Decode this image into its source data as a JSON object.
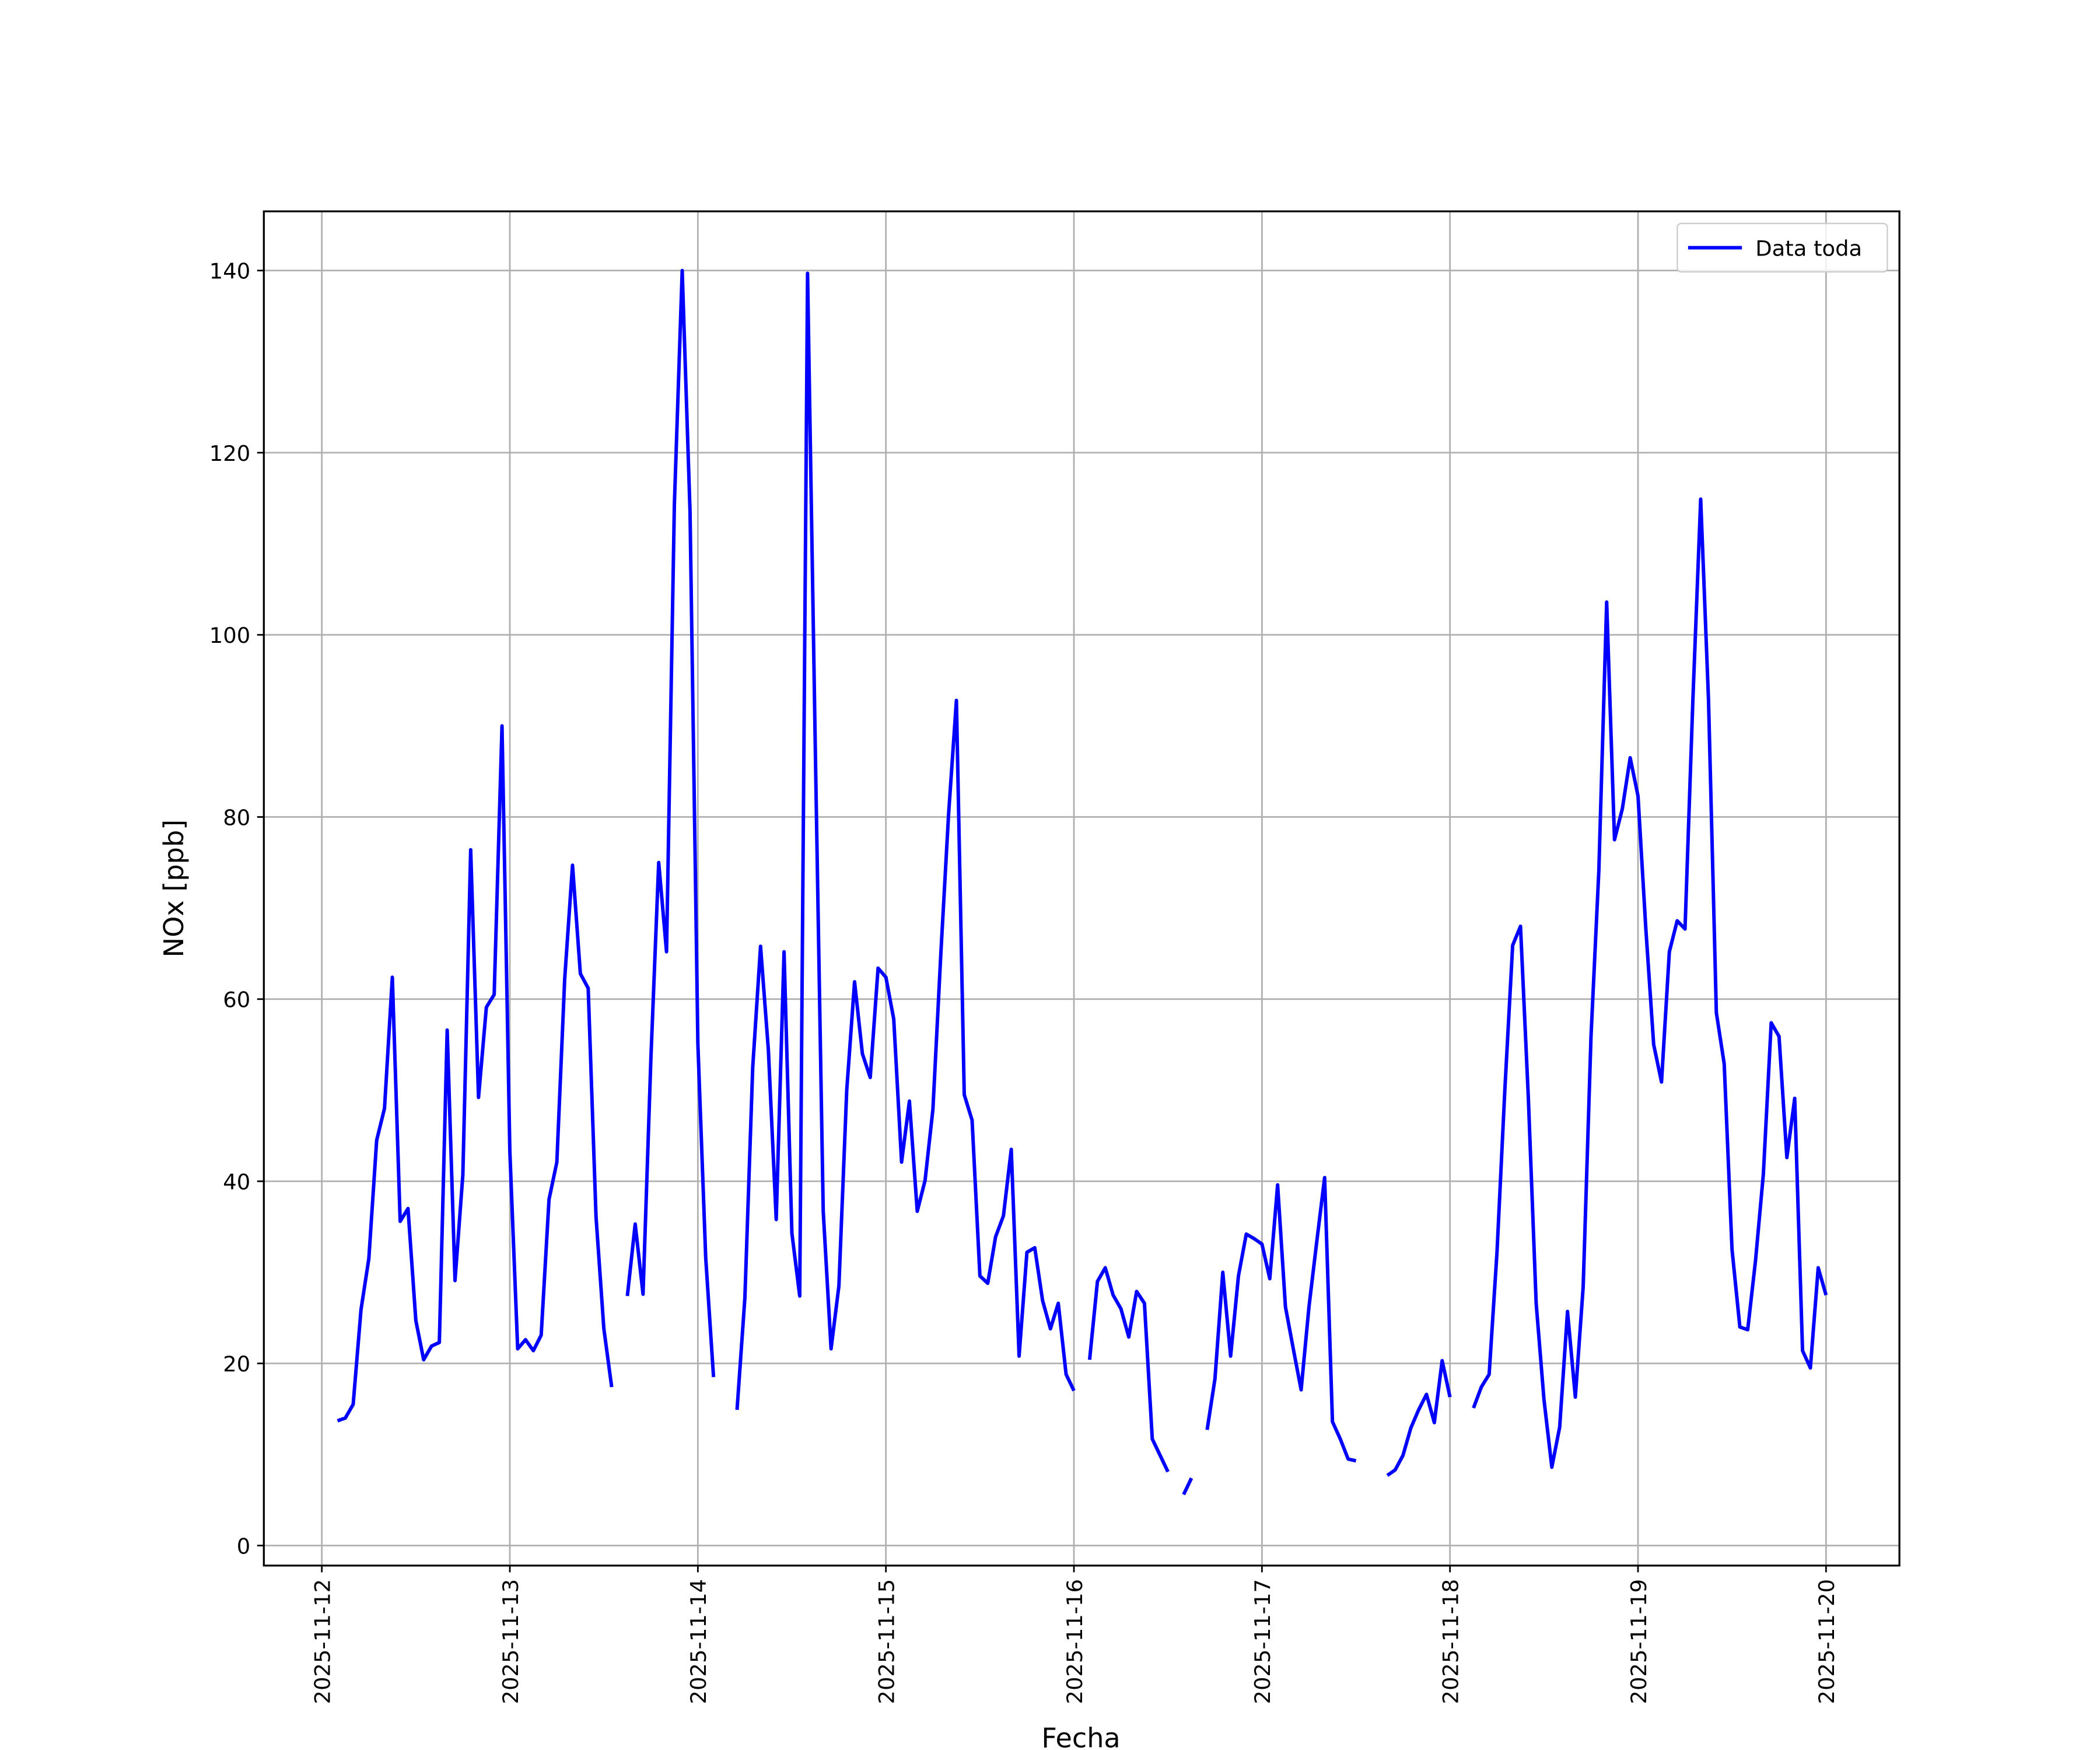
{
  "chart_data": {
    "type": "line",
    "xlabel": "Fecha",
    "ylabel": "NOx [ppb]",
    "x": [
      "2025-11-12 02:00",
      "2025-11-12 03:00",
      "2025-11-12 04:00",
      "2025-11-12 05:00",
      "2025-11-12 06:00",
      "2025-11-12 07:00",
      "2025-11-12 08:00",
      "2025-11-12 09:00",
      "2025-11-12 10:00",
      "2025-11-12 11:00",
      "2025-11-12 12:00",
      "2025-11-12 13:00",
      "2025-11-12 14:00",
      "2025-11-12 15:00",
      "2025-11-12 16:00",
      "2025-11-12 17:00",
      "2025-11-12 18:00",
      "2025-11-12 19:00",
      "2025-11-12 20:00",
      "2025-11-12 21:00",
      "2025-11-12 22:00",
      "2025-11-12 23:00",
      "2025-11-13 00:00",
      "2025-11-13 01:00",
      "2025-11-13 02:00",
      "2025-11-13 03:00",
      "2025-11-13 04:00",
      "2025-11-13 05:00",
      "2025-11-13 06:00",
      "2025-11-13 07:00",
      "2025-11-13 08:00",
      "2025-11-13 09:00",
      "2025-11-13 10:00",
      "2025-11-13 11:00",
      "2025-11-13 12:00",
      "2025-11-13 13:00",
      "2025-11-13 14:00",
      "2025-11-13 15:00",
      "2025-11-13 16:00",
      "2025-11-13 17:00",
      "2025-11-13 18:00",
      "2025-11-13 19:00",
      "2025-11-13 20:00",
      "2025-11-13 21:00",
      "2025-11-13 22:00",
      "2025-11-13 23:00",
      "2025-11-14 00:00",
      "2025-11-14 01:00",
      "2025-11-14 02:00",
      "2025-11-14 03:00",
      "2025-11-14 04:00",
      "2025-11-14 05:00",
      "2025-11-14 06:00",
      "2025-11-14 07:00",
      "2025-11-14 08:00",
      "2025-11-14 09:00",
      "2025-11-14 10:00",
      "2025-11-14 11:00",
      "2025-11-14 12:00",
      "2025-11-14 13:00",
      "2025-11-14 14:00",
      "2025-11-14 15:00",
      "2025-11-14 16:00",
      "2025-11-14 17:00",
      "2025-11-14 18:00",
      "2025-11-14 19:00",
      "2025-11-14 20:00",
      "2025-11-14 21:00",
      "2025-11-14 22:00",
      "2025-11-14 23:00",
      "2025-11-15 00:00",
      "2025-11-15 01:00",
      "2025-11-15 02:00",
      "2025-11-15 03:00",
      "2025-11-15 04:00",
      "2025-11-15 05:00",
      "2025-11-15 06:00",
      "2025-11-15 07:00",
      "2025-11-15 08:00",
      "2025-11-15 09:00",
      "2025-11-15 10:00",
      "2025-11-15 11:00",
      "2025-11-15 12:00",
      "2025-11-15 13:00",
      "2025-11-15 14:00",
      "2025-11-15 15:00",
      "2025-11-15 16:00",
      "2025-11-15 17:00",
      "2025-11-15 18:00",
      "2025-11-15 19:00",
      "2025-11-15 20:00",
      "2025-11-15 21:00",
      "2025-11-15 22:00",
      "2025-11-15 23:00",
      "2025-11-16 00:00",
      "2025-11-16 01:00",
      "2025-11-16 02:00",
      "2025-11-16 03:00",
      "2025-11-16 04:00",
      "2025-11-16 05:00",
      "2025-11-16 06:00",
      "2025-11-16 07:00",
      "2025-11-16 08:00",
      "2025-11-16 09:00",
      "2025-11-16 10:00",
      "2025-11-16 11:00",
      "2025-11-16 12:00",
      "2025-11-16 13:00",
      "2025-11-16 14:00",
      "2025-11-16 15:00",
      "2025-11-16 16:00",
      "2025-11-16 17:00",
      "2025-11-16 18:00",
      "2025-11-16 19:00",
      "2025-11-16 20:00",
      "2025-11-16 21:00",
      "2025-11-16 22:00",
      "2025-11-16 23:00",
      "2025-11-17 00:00",
      "2025-11-17 01:00",
      "2025-11-17 02:00",
      "2025-11-17 03:00",
      "2025-11-17 04:00",
      "2025-11-17 05:00",
      "2025-11-17 06:00",
      "2025-11-17 07:00",
      "2025-11-17 08:00",
      "2025-11-17 09:00",
      "2025-11-17 10:00",
      "2025-11-17 11:00",
      "2025-11-17 12:00",
      "2025-11-17 13:00",
      "2025-11-17 14:00",
      "2025-11-17 15:00",
      "2025-11-17 16:00",
      "2025-11-17 17:00",
      "2025-11-17 18:00",
      "2025-11-17 19:00",
      "2025-11-17 20:00",
      "2025-11-17 21:00",
      "2025-11-17 22:00",
      "2025-11-17 23:00",
      "2025-11-18 00:00",
      "2025-11-18 01:00",
      "2025-11-18 02:00",
      "2025-11-18 03:00",
      "2025-11-18 04:00",
      "2025-11-18 05:00",
      "2025-11-18 06:00",
      "2025-11-18 07:00",
      "2025-11-18 08:00",
      "2025-11-18 09:00",
      "2025-11-18 10:00",
      "2025-11-18 11:00",
      "2025-11-18 12:00",
      "2025-11-18 13:00",
      "2025-11-18 14:00",
      "2025-11-18 15:00",
      "2025-11-18 16:00",
      "2025-11-18 17:00",
      "2025-11-18 18:00",
      "2025-11-18 19:00",
      "2025-11-18 20:00",
      "2025-11-18 21:00",
      "2025-11-18 22:00",
      "2025-11-18 23:00",
      "2025-11-19 00:00",
      "2025-11-19 01:00",
      "2025-11-19 02:00",
      "2025-11-19 03:00",
      "2025-11-19 04:00",
      "2025-11-19 05:00",
      "2025-11-19 06:00",
      "2025-11-19 07:00",
      "2025-11-19 08:00",
      "2025-11-19 09:00",
      "2025-11-19 10:00",
      "2025-11-19 11:00",
      "2025-11-19 12:00",
      "2025-11-19 13:00",
      "2025-11-19 14:00",
      "2025-11-19 15:00",
      "2025-11-19 16:00",
      "2025-11-19 17:00",
      "2025-11-19 18:00",
      "2025-11-19 19:00",
      "2025-11-19 20:00",
      "2025-11-19 21:00",
      "2025-11-19 22:00",
      "2025-11-19 23:00",
      "2025-11-20 00:00"
    ],
    "series": [
      {
        "name": "Data toda",
        "color": "#0000ff",
        "values": [
          13.7,
          14.0,
          15.5,
          25.9,
          31.5,
          44.5,
          48.0,
          62.4,
          35.6,
          37.0,
          24.7,
          20.4,
          21.9,
          22.3,
          56.6,
          29.1,
          40.7,
          76.4,
          49.2,
          59.1,
          60.5,
          90.0,
          43.3,
          21.6,
          22.6,
          21.4,
          23.1,
          38.0,
          42.1,
          62.2,
          74.7,
          62.8,
          61.2,
          36.1,
          23.8,
          17.4,
          null,
          27.4,
          35.3,
          27.6,
          53.4,
          75.0,
          65.2,
          114.3,
          140.0,
          113.5,
          55.1,
          31.6,
          18.5,
          null,
          null,
          14.9,
          27.2,
          52.5,
          65.8,
          54.4,
          35.8,
          65.2,
          34.3,
          27.4,
          139.7,
          86.9,
          36.7,
          21.6,
          28.5,
          50.0,
          61.9,
          54.0,
          51.4,
          63.4,
          62.4,
          57.8,
          42.1,
          48.8,
          36.7,
          40.1,
          47.9,
          64.8,
          80.3,
          92.8,
          49.5,
          46.7,
          29.6,
          28.8,
          33.9,
          36.2,
          43.5,
          20.8,
          32.2,
          32.7,
          26.9,
          23.8,
          26.6,
          18.8,
          17.0,
          null,
          20.4,
          29.0,
          30.5,
          27.5,
          26.0,
          22.9,
          27.9,
          26.6,
          11.7,
          9.9,
          8.1,
          null,
          5.6,
          7.4,
          null,
          12.7,
          18.3,
          30.0,
          20.8,
          29.6,
          34.2,
          33.7,
          33.1,
          29.3,
          39.6,
          26.2,
          21.6,
          17.1,
          26.2,
          33.4,
          40.4,
          13.6,
          11.7,
          9.5,
          9.3,
          null,
          null,
          null,
          7.7,
          8.3,
          9.9,
          12.9,
          14.9,
          16.6,
          13.5,
          20.3,
          16.3,
          null,
          null,
          15.1,
          17.4,
          18.8,
          32.2,
          50.0,
          65.9,
          68.0,
          49.2,
          26.6,
          16.0,
          8.6,
          13.0,
          25.7,
          16.3,
          28.4,
          55.9,
          74.1,
          103.6,
          77.5,
          80.9,
          86.5,
          82.3,
          67.7,
          55.0,
          50.9,
          65.2,
          68.6,
          67.7,
          92.8,
          114.9,
          92.8,
          58.5,
          52.9,
          32.5,
          24.0,
          23.7,
          31.3,
          40.8,
          57.4,
          55.9,
          42.6,
          49.1,
          21.4,
          19.5,
          30.5,
          27.5
        ]
      }
    ],
    "xlim": [
      "2025-11-11 16:36",
      "2025-11-20 09:22"
    ],
    "xticks": [
      "2025-11-12",
      "2025-11-13",
      "2025-11-14",
      "2025-11-15",
      "2025-11-16",
      "2025-11-17",
      "2025-11-18",
      "2025-11-19",
      "2025-11-20"
    ],
    "ylim": [
      -2.2,
      146.5
    ],
    "yticks": [
      0,
      20,
      40,
      60,
      80,
      100,
      120,
      140
    ],
    "grid": true,
    "legend": "upper right"
  }
}
